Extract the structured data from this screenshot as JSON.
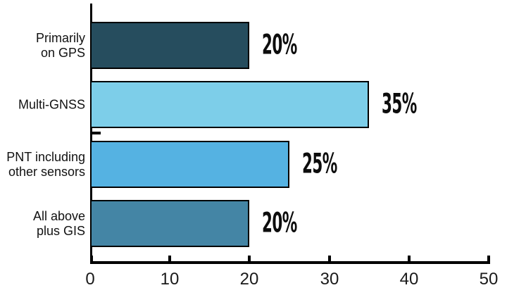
{
  "chart_data": {
    "type": "bar",
    "orientation": "horizontal",
    "title": "",
    "xlabel": "",
    "ylabel": "",
    "categories": [
      "Primarily on GPS",
      "Multi-GNSS",
      "PNT including other sensors",
      "All above plus GIS"
    ],
    "category_lines": [
      [
        "Primarily",
        "on GPS"
      ],
      [
        "Multi-GNSS"
      ],
      [
        "PNT including",
        "other sensors"
      ],
      [
        "All above",
        "plus GIS"
      ]
    ],
    "values": [
      20,
      35,
      25,
      20
    ],
    "data_labels": [
      "20%",
      "35%",
      "25%",
      "20%"
    ],
    "bar_colors": [
      "#264d5e",
      "#7dcee9",
      "#55b2e2",
      "#4485a5"
    ],
    "bar_border_color": "#000000",
    "xlim": [
      0,
      50
    ],
    "x_ticks": [
      0,
      10,
      20,
      30,
      40,
      50
    ],
    "x_tick_labels": [
      "0",
      "10",
      "20",
      "30",
      "40",
      "50"
    ],
    "grid": false,
    "legend": "none",
    "axis_color": "#000000",
    "background_color": "#ffffff",
    "text_color": "#111111"
  }
}
